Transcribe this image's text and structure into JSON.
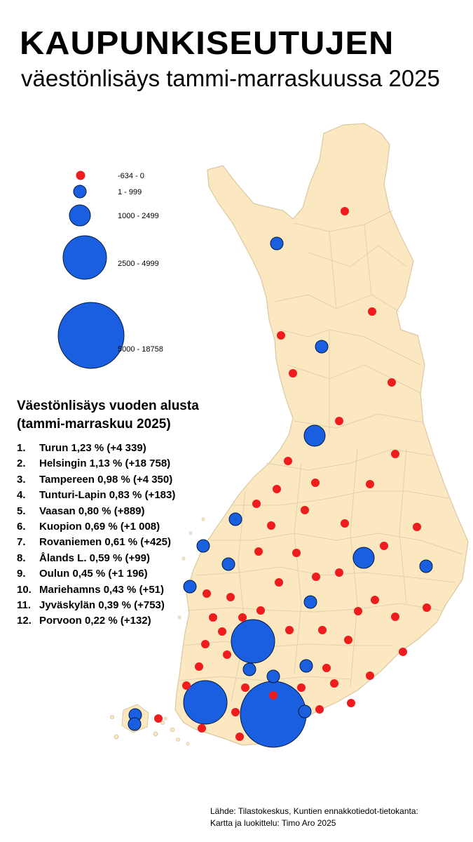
{
  "title": "KAUPUNKISEUTUJEN",
  "subtitle": "väestönlisäys tammi-marraskuussa 2025",
  "colors": {
    "land": "#fbe7c0",
    "border": "#d9c9a4",
    "negative": "#ee1c1c",
    "positive": "#1a5fe0",
    "circle_stroke": "#001a40"
  },
  "legend": [
    {
      "label": "-634 - 0",
      "color": "negative",
      "size_class": 0
    },
    {
      "label": "1 - 999",
      "color": "positive",
      "size_class": 1
    },
    {
      "label": "1000 - 2499",
      "color": "positive",
      "size_class": 2
    },
    {
      "label": "2500 - 4999",
      "color": "positive",
      "size_class": 3
    },
    {
      "label": "5000 - 18758",
      "color": "positive",
      "size_class": 4
    }
  ],
  "ranking": {
    "heading_line1": "Väestönlisäys vuoden alusta",
    "heading_line2": "(tammi-marraskuu 2025)",
    "items": [
      {
        "rank": "1.",
        "text": "Turun 1,23 % (+4 339)"
      },
      {
        "rank": "2.",
        "text": "Helsingin 1,13 % (+18 758)"
      },
      {
        "rank": "3.",
        "text": "Tampereen 0,98 % (+4 350)"
      },
      {
        "rank": "4.",
        "text": "Tunturi-Lapin 0,83 % (+183)"
      },
      {
        "rank": "5.",
        "text": "Vaasan 0,80 % (+889)"
      },
      {
        "rank": "6.",
        "text": "Kuopion 0,69 % (+1 008)"
      },
      {
        "rank": "7.",
        "text": "Rovaniemen 0,61 % (+425)"
      },
      {
        "rank": "8.",
        "text": "Ålands L. 0,59 % (+99)"
      },
      {
        "rank": "9.",
        "text": "Oulun 0,45 % (+1 196)"
      },
      {
        "rank": "10.",
        "text": "Mariehamns 0,43 % (+51)"
      },
      {
        "rank": "11.",
        "text": "Jyväskylän 0,39 % (+753)"
      },
      {
        "rank": "12.",
        "text": "Porvoon 0,22 % (+132)"
      }
    ]
  },
  "source_line1": "Lähde: Tilastokeskus, Kuntien ennakkotiedot-tietokanta:",
  "source_line2": "Kartta ja luokittelu: Timo Aro 2025"
}
